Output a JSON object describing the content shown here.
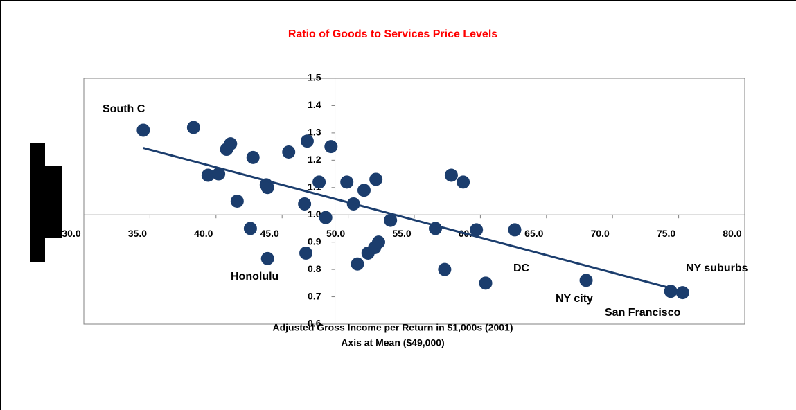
{
  "chart_data": {
    "type": "scatter",
    "title": "Ratio of Goods to Services Price Levels",
    "x_label": "Adjusted Gross Income per Return in $1,000s (2001)",
    "x_label_2": "Axis at Mean ($49,000)",
    "x_axis_at": 49,
    "y_axis_at": 1.0,
    "xlim": [
      30,
      80
    ],
    "xticks": [
      {
        "value": 30,
        "label": "30.0"
      },
      {
        "value": 35,
        "label": "35.0"
      },
      {
        "value": 40,
        "label": "40.0"
      },
      {
        "value": 45,
        "label": "45.0"
      },
      {
        "value": 50,
        "label": "50.0"
      },
      {
        "value": 55,
        "label": "55.0"
      },
      {
        "value": 60,
        "label": "60.0"
      },
      {
        "value": 65,
        "label": "65.0"
      },
      {
        "value": 70,
        "label": "70.0"
      },
      {
        "value": 75,
        "label": "75.0"
      },
      {
        "value": 80,
        "label": "80.0"
      }
    ],
    "ylim": [
      0.6,
      1.5
    ],
    "yticks": [
      0.6,
      0.7,
      0.8,
      0.9,
      {
        "value": 1.0,
        "label": "1.0"
      },
      1.1,
      1.2,
      1.3,
      1.4,
      1.5
    ],
    "series": [
      {
        "color": "#1b3d6d",
        "x": [
          34.5,
          38.3,
          39.4,
          40.2,
          40.8,
          41.1,
          41.6,
          42.8,
          42.6,
          43.8,
          43.9,
          43.9,
          45.5,
          46.9,
          46.7,
          46.8,
          47.8,
          48.7,
          48.3,
          49.9,
          50.4,
          51.2,
          52.1,
          50.7,
          51.5,
          52.0,
          52.3,
          53.2,
          56.6,
          57.3,
          57.8,
          58.7,
          59.7,
          60.4,
          62.6,
          68.0,
          74.4,
          75.3
        ],
        "values": [
          1.31,
          1.32,
          1.145,
          1.15,
          1.24,
          1.26,
          1.05,
          1.21,
          0.95,
          1.11,
          1.1,
          0.84,
          1.23,
          1.27,
          1.04,
          0.86,
          1.12,
          1.25,
          0.99,
          1.12,
          1.04,
          1.09,
          1.13,
          0.82,
          0.86,
          0.88,
          0.9,
          0.98,
          0.95,
          0.8,
          1.145,
          1.12,
          0.945,
          0.75,
          0.945,
          0.76,
          0.72,
          0.715
        ]
      }
    ],
    "trendline": {
      "x": [
        34.5,
        75.3
      ],
      "values": [
        1.245,
        0.72
      ]
    },
    "annotations": [
      "South C",
      "Honolulu",
      "DC",
      "NY city",
      "San Francisco",
      "NY suburbs"
    ]
  }
}
